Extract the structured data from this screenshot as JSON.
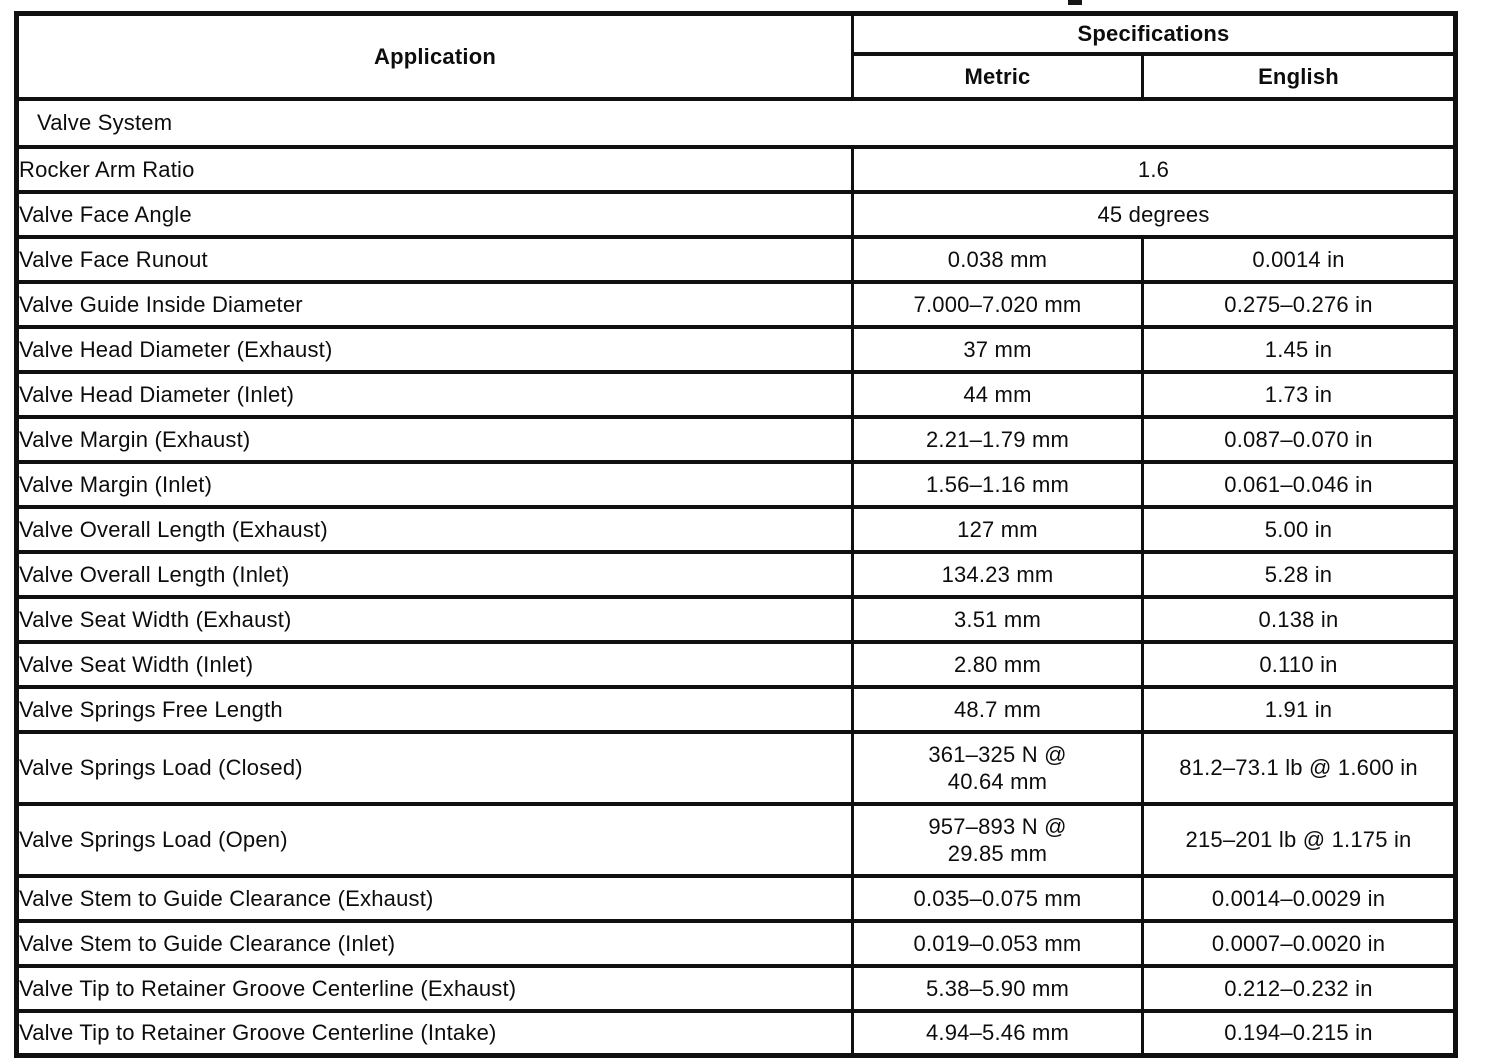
{
  "table": {
    "headers": {
      "application": "Application",
      "specifications": "Specifications",
      "metric": "Metric",
      "english": "English"
    },
    "rows": [
      {
        "label": "Valve System",
        "type": "section"
      },
      {
        "label": "Rocker Arm Ratio",
        "value": "1.6",
        "type": "span"
      },
      {
        "label": "Valve Face Angle",
        "value": "45 degrees",
        "type": "span"
      },
      {
        "label": "Valve Face Runout",
        "metric": "0.038 mm",
        "english": "0.0014 in"
      },
      {
        "label": "Valve Guide Inside Diameter",
        "metric": "7.000–7.020 mm",
        "english": "0.275–0.276 in"
      },
      {
        "label": "Valve Head Diameter (Exhaust)",
        "metric": "37 mm",
        "english": "1.45 in"
      },
      {
        "label": "Valve Head Diameter (Inlet)",
        "metric": "44 mm",
        "english": "1.73 in"
      },
      {
        "label": "Valve Margin (Exhaust)",
        "metric": "2.21–1.79 mm",
        "english": "0.087–0.070 in"
      },
      {
        "label": "Valve Margin (Inlet)",
        "metric": "1.56–1.16 mm",
        "english": "0.061–0.046 in"
      },
      {
        "label": "Valve Overall Length (Exhaust)",
        "metric": "127 mm",
        "english": "5.00 in"
      },
      {
        "label": "Valve Overall Length (Inlet)",
        "metric": "134.23 mm",
        "english": "5.28 in"
      },
      {
        "label": "Valve Seat Width (Exhaust)",
        "metric": "3.51 mm",
        "english": "0.138 in"
      },
      {
        "label": "Valve Seat Width (Inlet)",
        "metric": "2.80 mm",
        "english": "0.110 in"
      },
      {
        "label": "Valve Springs Free Length",
        "metric": "48.7 mm",
        "english": "1.91 in"
      },
      {
        "label": "Valve Springs Load (Closed)",
        "metric_line1": "361–325 N @",
        "metric_line2": "40.64 mm",
        "english": "81.2–73.1 lb @ 1.600 in"
      },
      {
        "label": "Valve Springs Load (Open)",
        "metric_line1": "957–893 N @",
        "metric_line2": "29.85 mm",
        "english": "215–201 lb @ 1.175 in"
      },
      {
        "label": "Valve Stem to Guide Clearance (Exhaust)",
        "metric": "0.035–0.075 mm",
        "english": "0.0014–0.0029 in"
      },
      {
        "label": "Valve Stem to Guide Clearance (Inlet)",
        "metric": "0.019–0.053 mm",
        "english": "0.0007–0.0020 in"
      },
      {
        "label": "Valve Tip to Retainer Groove Centerline (Exhaust)",
        "metric": "5.38–5.90 mm",
        "english": "0.212–0.232 in"
      },
      {
        "label": "Valve Tip to Retainer Groove Centerline (Intake)",
        "metric": "4.94–5.46 mm",
        "english": "0.194–0.215 in"
      }
    ]
  },
  "colors": {
    "ink": "#101010",
    "paper": "#ffffff"
  }
}
